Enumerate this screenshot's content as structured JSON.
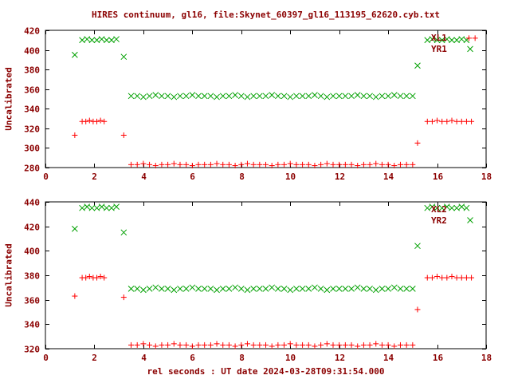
{
  "title": "HIRES continuum, gl16, file:Skynet_60397_gl16_113195_62620.cyb.txt",
  "xlabel": "rel seconds : UT date 2024-03-28T09:31:54.000",
  "colors": {
    "background": "#ffffff",
    "text": "#8b0000",
    "axis": "#000000",
    "green": "#00a000",
    "red": "#ff0000"
  },
  "chart_data": [
    {
      "type": "scatter",
      "panel": "top",
      "ylabel": "Uncalibrated",
      "xlim": [
        0,
        18
      ],
      "ylim": [
        280,
        420
      ],
      "xticks": [
        0,
        2,
        4,
        6,
        8,
        10,
        12,
        14,
        16,
        18
      ],
      "yticks": [
        280,
        300,
        320,
        340,
        360,
        380,
        400,
        420
      ],
      "grid": false,
      "legend_position": "top-right",
      "series": [
        {
          "name": "XL1",
          "marker": "x",
          "color": "#00a000",
          "points": [
            [
              1.2,
              395
            ],
            [
              1.5,
              410
            ],
            [
              1.7,
              411
            ],
            [
              1.9,
              410
            ],
            [
              2.1,
              410
            ],
            [
              2.3,
              411
            ],
            [
              2.5,
              410
            ],
            [
              2.7,
              410
            ],
            [
              2.9,
              411
            ],
            [
              3.2,
              393
            ],
            [
              3.5,
              353
            ],
            [
              3.75,
              353
            ],
            [
              4,
              352
            ],
            [
              4.25,
              353
            ],
            [
              4.5,
              354
            ],
            [
              4.75,
              353
            ],
            [
              5,
              353
            ],
            [
              5.25,
              352
            ],
            [
              5.5,
              353
            ],
            [
              5.75,
              353
            ],
            [
              6,
              354
            ],
            [
              6.25,
              353
            ],
            [
              6.5,
              353
            ],
            [
              6.75,
              353
            ],
            [
              7,
              352
            ],
            [
              7.25,
              353
            ],
            [
              7.5,
              353
            ],
            [
              7.75,
              354
            ],
            [
              8,
              353
            ],
            [
              8.25,
              352
            ],
            [
              8.5,
              353
            ],
            [
              8.75,
              353
            ],
            [
              9,
              353
            ],
            [
              9.25,
              354
            ],
            [
              9.5,
              353
            ],
            [
              9.75,
              353
            ],
            [
              10,
              352
            ],
            [
              10.25,
              353
            ],
            [
              10.5,
              353
            ],
            [
              10.75,
              353
            ],
            [
              11,
              354
            ],
            [
              11.25,
              353
            ],
            [
              11.5,
              352
            ],
            [
              11.75,
              353
            ],
            [
              12,
              353
            ],
            [
              12.25,
              353
            ],
            [
              12.5,
              353
            ],
            [
              12.75,
              354
            ],
            [
              13,
              353
            ],
            [
              13.25,
              353
            ],
            [
              13.5,
              352
            ],
            [
              13.75,
              353
            ],
            [
              14,
              353
            ],
            [
              14.25,
              354
            ],
            [
              14.5,
              353
            ],
            [
              14.75,
              353
            ],
            [
              15,
              353
            ],
            [
              15.2,
              384
            ],
            [
              15.6,
              410
            ],
            [
              15.8,
              411
            ],
            [
              16,
              410
            ],
            [
              16.2,
              410
            ],
            [
              16.4,
              411
            ],
            [
              16.6,
              410
            ],
            [
              16.8,
              410
            ],
            [
              17,
              411
            ],
            [
              17.2,
              410
            ],
            [
              17.35,
              401
            ]
          ]
        },
        {
          "name": "YR1",
          "marker": "+",
          "color": "#ff0000",
          "points": [
            [
              1.2,
              313
            ],
            [
              1.5,
              327
            ],
            [
              1.65,
              327
            ],
            [
              1.8,
              328
            ],
            [
              1.95,
              327
            ],
            [
              2.1,
              327
            ],
            [
              2.25,
              328
            ],
            [
              2.4,
              327
            ],
            [
              3.2,
              313
            ],
            [
              3.5,
              283
            ],
            [
              3.75,
              283
            ],
            [
              4,
              284
            ],
            [
              4.25,
              283
            ],
            [
              4.5,
              282
            ],
            [
              4.75,
              283
            ],
            [
              5,
              283
            ],
            [
              5.25,
              284
            ],
            [
              5.5,
              283
            ],
            [
              5.75,
              283
            ],
            [
              6,
              282
            ],
            [
              6.25,
              283
            ],
            [
              6.5,
              283
            ],
            [
              6.75,
              283
            ],
            [
              7,
              284
            ],
            [
              7.25,
              283
            ],
            [
              7.5,
              283
            ],
            [
              7.75,
              282
            ],
            [
              8,
              283
            ],
            [
              8.25,
              284
            ],
            [
              8.5,
              283
            ],
            [
              8.75,
              283
            ],
            [
              9,
              283
            ],
            [
              9.25,
              282
            ],
            [
              9.5,
              283
            ],
            [
              9.75,
              283
            ],
            [
              10,
              284
            ],
            [
              10.25,
              283
            ],
            [
              10.5,
              283
            ],
            [
              10.75,
              283
            ],
            [
              11,
              282
            ],
            [
              11.25,
              283
            ],
            [
              11.5,
              284
            ],
            [
              11.75,
              283
            ],
            [
              12,
              283
            ],
            [
              12.25,
              283
            ],
            [
              12.5,
              283
            ],
            [
              12.75,
              282
            ],
            [
              13,
              283
            ],
            [
              13.25,
              283
            ],
            [
              13.5,
              284
            ],
            [
              13.75,
              283
            ],
            [
              14,
              283
            ],
            [
              14.25,
              282
            ],
            [
              14.5,
              283
            ],
            [
              14.75,
              283
            ],
            [
              15,
              283
            ],
            [
              15.2,
              305
            ],
            [
              15.6,
              327
            ],
            [
              15.8,
              327
            ],
            [
              16,
              328
            ],
            [
              16.2,
              327
            ],
            [
              16.4,
              327
            ],
            [
              16.6,
              328
            ],
            [
              16.8,
              327
            ],
            [
              17,
              327
            ],
            [
              17.2,
              327
            ],
            [
              17.4,
              327
            ],
            [
              17.3,
              412
            ],
            [
              17.55,
              412
            ]
          ]
        }
      ]
    },
    {
      "type": "scatter",
      "panel": "bottom",
      "ylabel": "Uncalibrated",
      "xlim": [
        0,
        18
      ],
      "ylim": [
        320,
        440
      ],
      "xticks": [
        0,
        2,
        4,
        6,
        8,
        10,
        12,
        14,
        16,
        18
      ],
      "yticks": [
        320,
        340,
        360,
        380,
        400,
        420,
        440
      ],
      "grid": false,
      "legend_position": "top-right",
      "series": [
        {
          "name": "XL2",
          "marker": "x",
          "color": "#00a000",
          "points": [
            [
              1.2,
              418
            ],
            [
              1.5,
              435
            ],
            [
              1.7,
              436
            ],
            [
              1.9,
              435
            ],
            [
              2.1,
              435
            ],
            [
              2.3,
              436
            ],
            [
              2.5,
              435
            ],
            [
              2.7,
              435
            ],
            [
              2.9,
              436
            ],
            [
              3.2,
              415
            ],
            [
              3.5,
              369
            ],
            [
              3.75,
              369
            ],
            [
              4,
              368
            ],
            [
              4.25,
              369
            ],
            [
              4.5,
              370
            ],
            [
              4.75,
              369
            ],
            [
              5,
              369
            ],
            [
              5.25,
              368
            ],
            [
              5.5,
              369
            ],
            [
              5.75,
              369
            ],
            [
              6,
              370
            ],
            [
              6.25,
              369
            ],
            [
              6.5,
              369
            ],
            [
              6.75,
              369
            ],
            [
              7,
              368
            ],
            [
              7.25,
              369
            ],
            [
              7.5,
              369
            ],
            [
              7.75,
              370
            ],
            [
              8,
              369
            ],
            [
              8.25,
              368
            ],
            [
              8.5,
              369
            ],
            [
              8.75,
              369
            ],
            [
              9,
              369
            ],
            [
              9.25,
              370
            ],
            [
              9.5,
              369
            ],
            [
              9.75,
              369
            ],
            [
              10,
              368
            ],
            [
              10.25,
              369
            ],
            [
              10.5,
              369
            ],
            [
              10.75,
              369
            ],
            [
              11,
              370
            ],
            [
              11.25,
              369
            ],
            [
              11.5,
              368
            ],
            [
              11.75,
              369
            ],
            [
              12,
              369
            ],
            [
              12.25,
              369
            ],
            [
              12.5,
              369
            ],
            [
              12.75,
              370
            ],
            [
              13,
              369
            ],
            [
              13.25,
              369
            ],
            [
              13.5,
              368
            ],
            [
              13.75,
              369
            ],
            [
              14,
              369
            ],
            [
              14.25,
              370
            ],
            [
              14.5,
              369
            ],
            [
              14.75,
              369
            ],
            [
              15,
              369
            ],
            [
              15.2,
              404
            ],
            [
              15.6,
              435
            ],
            [
              15.8,
              436
            ],
            [
              16,
              435
            ],
            [
              16.2,
              435
            ],
            [
              16.4,
              436
            ],
            [
              16.6,
              435
            ],
            [
              16.8,
              435
            ],
            [
              17,
              436
            ],
            [
              17.2,
              435
            ],
            [
              17.35,
              425
            ]
          ]
        },
        {
          "name": "YR2",
          "marker": "+",
          "color": "#ff0000",
          "points": [
            [
              1.2,
              363
            ],
            [
              1.5,
              378
            ],
            [
              1.65,
              378
            ],
            [
              1.8,
              379
            ],
            [
              1.95,
              378
            ],
            [
              2.1,
              378
            ],
            [
              2.25,
              379
            ],
            [
              2.4,
              378
            ],
            [
              3.2,
              362
            ],
            [
              3.5,
              323
            ],
            [
              3.75,
              323
            ],
            [
              4,
              324
            ],
            [
              4.25,
              323
            ],
            [
              4.5,
              322
            ],
            [
              4.75,
              323
            ],
            [
              5,
              323
            ],
            [
              5.25,
              324
            ],
            [
              5.5,
              323
            ],
            [
              5.75,
              323
            ],
            [
              6,
              322
            ],
            [
              6.25,
              323
            ],
            [
              6.5,
              323
            ],
            [
              6.75,
              323
            ],
            [
              7,
              324
            ],
            [
              7.25,
              323
            ],
            [
              7.5,
              323
            ],
            [
              7.75,
              322
            ],
            [
              8,
              323
            ],
            [
              8.25,
              324
            ],
            [
              8.5,
              323
            ],
            [
              8.75,
              323
            ],
            [
              9,
              323
            ],
            [
              9.25,
              322
            ],
            [
              9.5,
              323
            ],
            [
              9.75,
              323
            ],
            [
              10,
              324
            ],
            [
              10.25,
              323
            ],
            [
              10.5,
              323
            ],
            [
              10.75,
              323
            ],
            [
              11,
              322
            ],
            [
              11.25,
              323
            ],
            [
              11.5,
              324
            ],
            [
              11.75,
              323
            ],
            [
              12,
              323
            ],
            [
              12.25,
              323
            ],
            [
              12.5,
              323
            ],
            [
              12.75,
              322
            ],
            [
              13,
              323
            ],
            [
              13.25,
              323
            ],
            [
              13.5,
              324
            ],
            [
              13.75,
              323
            ],
            [
              14,
              323
            ],
            [
              14.25,
              322
            ],
            [
              14.5,
              323
            ],
            [
              14.75,
              323
            ],
            [
              15,
              323
            ],
            [
              15.2,
              352
            ],
            [
              15.6,
              378
            ],
            [
              15.8,
              378
            ],
            [
              16,
              379
            ],
            [
              16.2,
              378
            ],
            [
              16.4,
              378
            ],
            [
              16.6,
              379
            ],
            [
              16.8,
              378
            ],
            [
              17,
              378
            ],
            [
              17.2,
              378
            ],
            [
              17.4,
              378
            ]
          ]
        }
      ]
    }
  ]
}
